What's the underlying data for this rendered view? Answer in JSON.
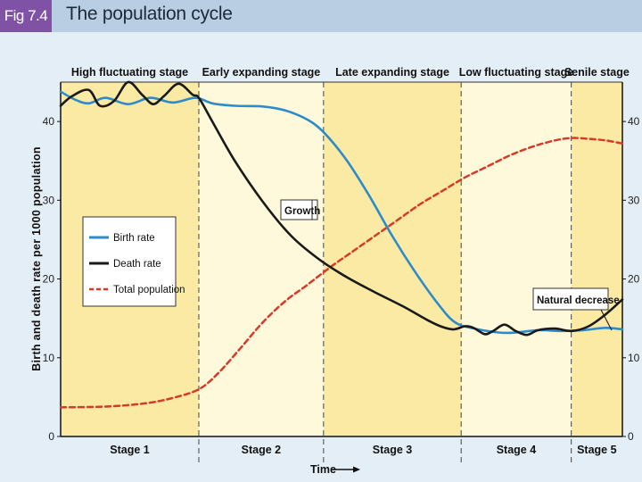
{
  "header": {
    "fig_label": "Fig 7.4",
    "title": "The population cycle"
  },
  "chart_data": {
    "type": "line",
    "ylabel": "Birth and death rate per 1000 population",
    "xlabel": "Time",
    "ylim": [
      0,
      45
    ],
    "y_ticks": [
      0,
      10,
      20,
      30,
      40
    ],
    "x_range": [
      0,
      100
    ],
    "stage_bounds": [
      0,
      24.6,
      46.8,
      71.3,
      90.9,
      100
    ],
    "stage_titles": [
      "High fluctuating stage",
      "Early expanding stage",
      "Late expanding stage",
      "Low fluctuating stage",
      "Senile stage"
    ],
    "stage_labels": [
      "Stage 1",
      "Stage 2",
      "Stage 3",
      "Stage 4",
      "Stage 5"
    ],
    "stage_colors": [
      "#fbeaa3",
      "#fdf9da",
      "#fbeaa3",
      "#fdf9da",
      "#fbeaa3"
    ],
    "legend_placement": "left",
    "series": [
      {
        "name": "Birth rate",
        "color": "#2e8bc9",
        "style": "solid",
        "points": [
          [
            0,
            43.8
          ],
          [
            2.5,
            42.8
          ],
          [
            5,
            42.3
          ],
          [
            8,
            43.0
          ],
          [
            12,
            42.2
          ],
          [
            16,
            43.0
          ],
          [
            20,
            42.4
          ],
          [
            24,
            43.0
          ],
          [
            27,
            42.3
          ],
          [
            31,
            42.0
          ],
          [
            36,
            41.9
          ],
          [
            40,
            41.4
          ],
          [
            44,
            40.2
          ],
          [
            47,
            38.5
          ],
          [
            51,
            35.0
          ],
          [
            55,
            30.5
          ],
          [
            59,
            25.5
          ],
          [
            63,
            21.0
          ],
          [
            67,
            17.0
          ],
          [
            70,
            14.6
          ],
          [
            73,
            13.8
          ],
          [
            78,
            13.2
          ],
          [
            81,
            13.2
          ],
          [
            85,
            13.5
          ],
          [
            89,
            13.4
          ],
          [
            93,
            13.5
          ],
          [
            97,
            13.8
          ],
          [
            100,
            13.6
          ]
        ]
      },
      {
        "name": "Death rate",
        "color": "#1a1a1a",
        "style": "solid",
        "points": [
          [
            0,
            42.0
          ],
          [
            2,
            43.2
          ],
          [
            5,
            44.0
          ],
          [
            7,
            42.0
          ],
          [
            9.5,
            42.6
          ],
          [
            12,
            45.0
          ],
          [
            14.5,
            43.4
          ],
          [
            16.5,
            42.2
          ],
          [
            18.5,
            43.3
          ],
          [
            21,
            44.8
          ],
          [
            23.5,
            43.4
          ],
          [
            24.6,
            43.0
          ],
          [
            27,
            40.0
          ],
          [
            31,
            35.0
          ],
          [
            36,
            29.8
          ],
          [
            41,
            25.5
          ],
          [
            46,
            22.5
          ],
          [
            51,
            20.2
          ],
          [
            56,
            18.3
          ],
          [
            61,
            16.5
          ],
          [
            65.5,
            14.7
          ],
          [
            68,
            13.9
          ],
          [
            70,
            13.6
          ],
          [
            72,
            14.0
          ],
          [
            73.5,
            13.8
          ],
          [
            75.5,
            13.0
          ],
          [
            77,
            13.4
          ],
          [
            79,
            14.2
          ],
          [
            81,
            13.4
          ],
          [
            83,
            12.9
          ],
          [
            85,
            13.5
          ],
          [
            88,
            13.7
          ],
          [
            91,
            13.4
          ],
          [
            94,
            14.0
          ],
          [
            97,
            15.5
          ],
          [
            100,
            17.4
          ]
        ]
      },
      {
        "name": "Total population",
        "color": "#d63a2a",
        "style": "dashed",
        "points": [
          [
            0,
            3.7
          ],
          [
            8,
            3.8
          ],
          [
            15,
            4.2
          ],
          [
            20,
            4.9
          ],
          [
            24.6,
            6.0
          ],
          [
            28,
            8.0
          ],
          [
            32,
            11.2
          ],
          [
            36,
            14.5
          ],
          [
            40,
            17.2
          ],
          [
            44,
            19.3
          ],
          [
            48,
            21.5
          ],
          [
            52,
            23.5
          ],
          [
            56,
            25.5
          ],
          [
            60,
            27.5
          ],
          [
            64,
            29.5
          ],
          [
            68,
            31.2
          ],
          [
            72,
            32.9
          ],
          [
            76,
            34.3
          ],
          [
            80,
            35.7
          ],
          [
            84,
            36.8
          ],
          [
            88,
            37.6
          ],
          [
            91,
            37.9
          ],
          [
            94,
            37.8
          ],
          [
            97,
            37.6
          ],
          [
            100,
            37.2
          ]
        ]
      }
    ],
    "annotations": [
      "Growth",
      "Natural decrease"
    ]
  }
}
